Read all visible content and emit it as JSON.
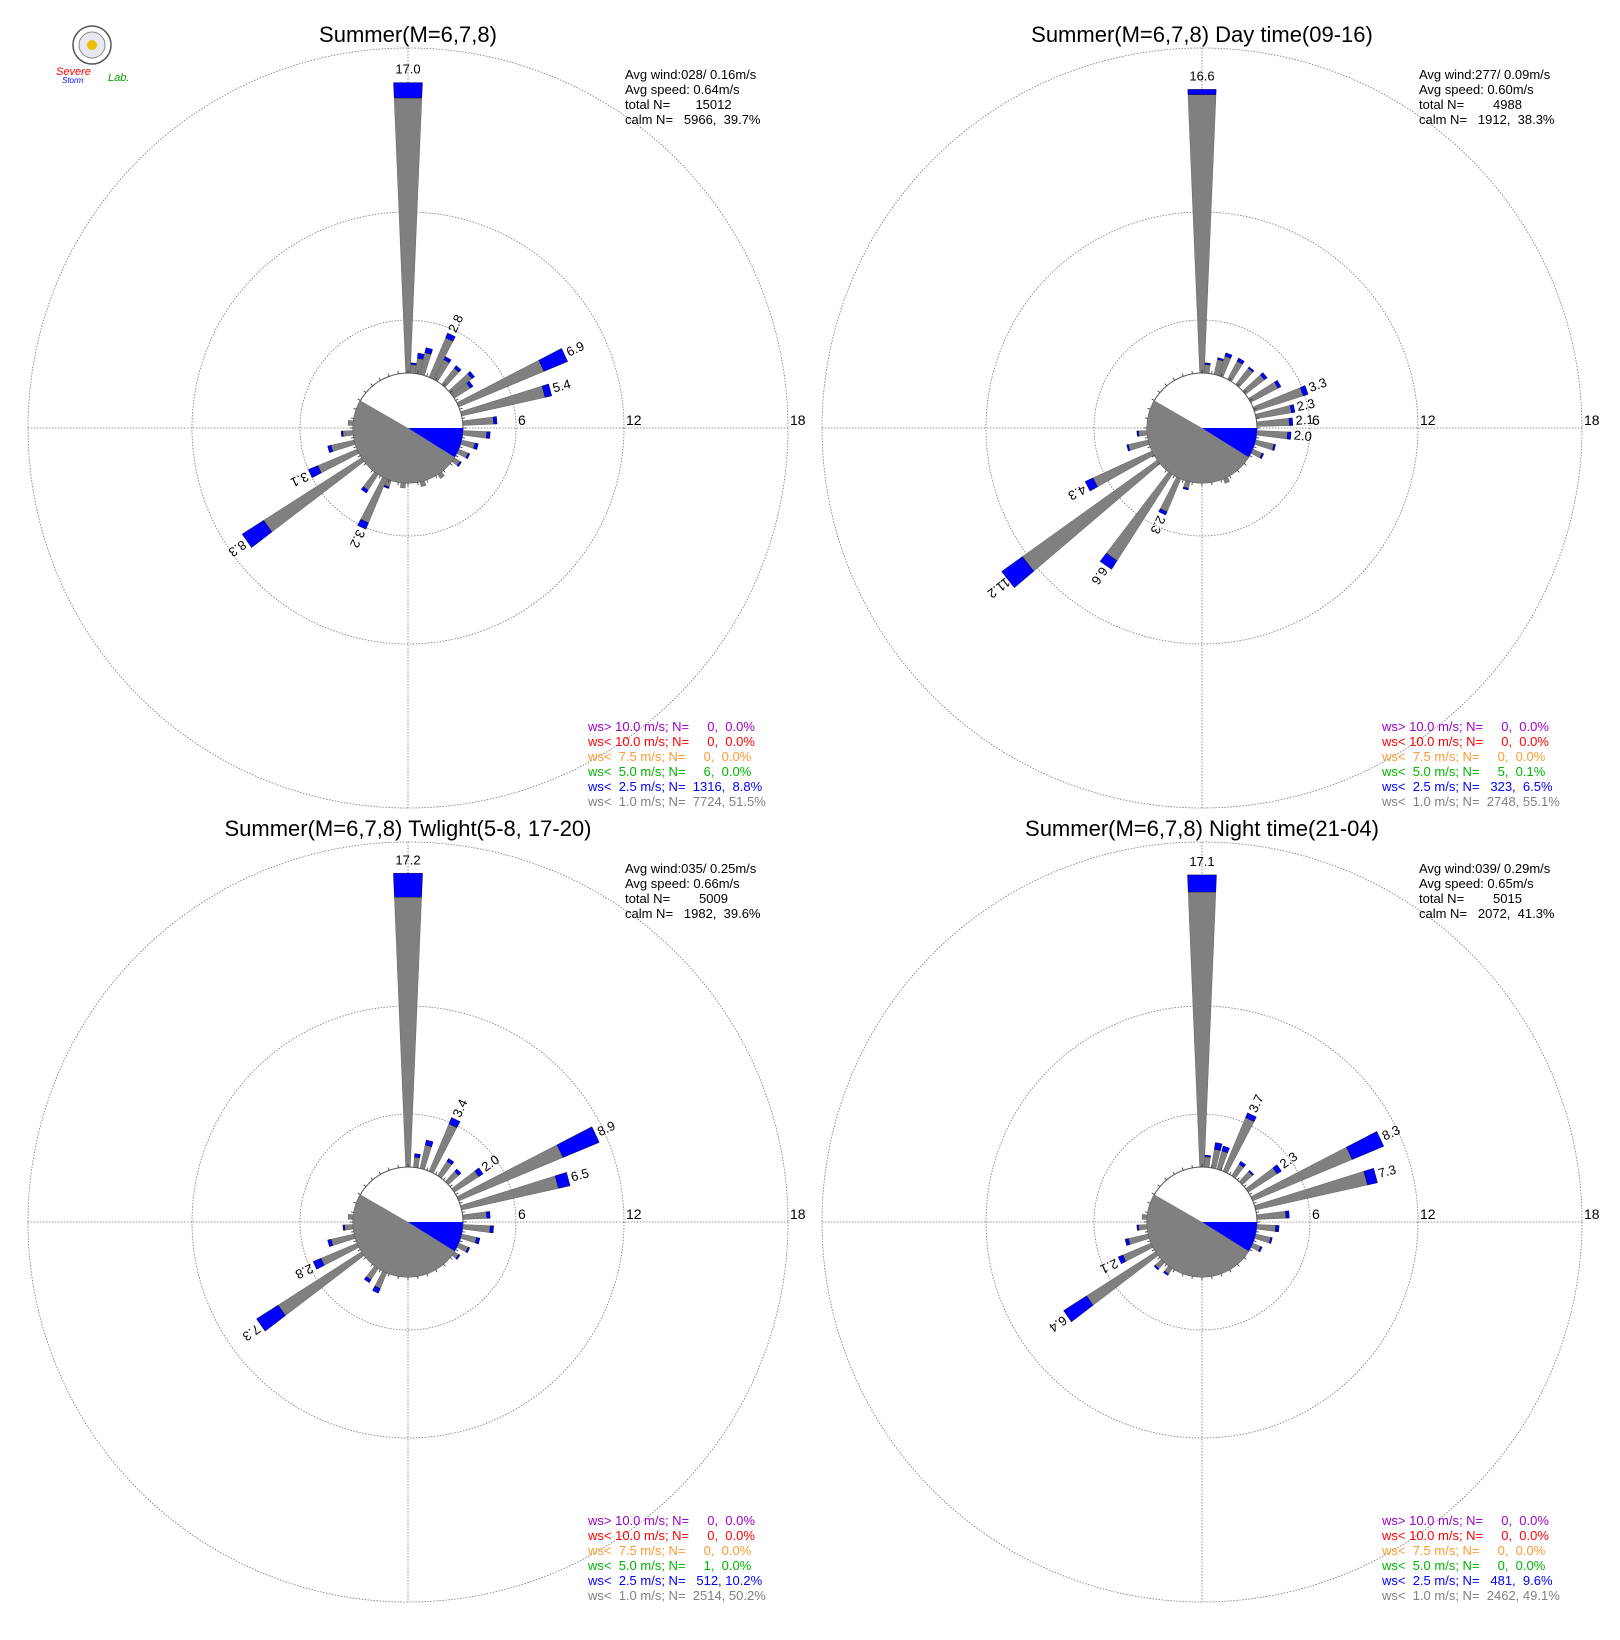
{
  "logo": {
    "line1": "Severe",
    "line2": "Storm",
    "line3": "Lab."
  },
  "legend_colors": {
    "gt10": "#a000c8",
    "lt10": "#ff0000",
    "lt75": "#ff9933",
    "lt5": "#00b400",
    "lt25": "#0000ff",
    "lt1": "#808080"
  },
  "chart_data": [
    {
      "type": "wind-rose",
      "title": "Summer(M=6,7,8)",
      "ring_labels": [
        "6",
        "12",
        "18"
      ],
      "rmax": 18,
      "stats": [
        "Avg wind:028/ 0.16m/s",
        "Avg speed: 0.64m/s",
        "total N=       15012",
        "calm N=   5966,  39.7%"
      ],
      "legend": [
        {
          "key": "gt10",
          "text": "ws> 10.0 m/s; N=     0,  0.0%"
        },
        {
          "key": "lt10",
          "text": "ws< 10.0 m/s; N=     0,  0.0%"
        },
        {
          "key": "lt75",
          "text": "ws<  7.5 m/s; N=     0,  0.0%"
        },
        {
          "key": "lt5",
          "text": "ws<  5.0 m/s; N=     6,  0.0%"
        },
        {
          "key": "lt25",
          "text": "ws<  2.5 m/s; N=  1316,  8.8%"
        },
        {
          "key": "lt1",
          "text": "ws<  1.0 m/s; N=  7724, 51.5%"
        }
      ],
      "sectors": [
        {
          "dir": 0,
          "total": 17.0,
          "blue": 0.9,
          "label": "17.0"
        },
        {
          "dir": 5,
          "total": 0.6,
          "blue": 0.1
        },
        {
          "dir": 10,
          "total": 1.2,
          "blue": 0.3
        },
        {
          "dir": 15,
          "total": 1.6,
          "blue": 0.3
        },
        {
          "dir": 25,
          "total": 2.8,
          "blue": 0.3,
          "label": "2.8"
        },
        {
          "dir": 30,
          "total": 1.5,
          "blue": 0.2
        },
        {
          "dir": 40,
          "total": 1.4,
          "blue": 0.2
        },
        {
          "dir": 50,
          "total": 1.7,
          "blue": 0.2
        },
        {
          "dir": 55,
          "total": 1.3,
          "blue": 0.2
        },
        {
          "dir": 65,
          "total": 6.9,
          "blue": 1.5,
          "label": "6.9"
        },
        {
          "dir": 75,
          "total": 5.4,
          "blue": 0.4,
          "label": "5.4"
        },
        {
          "dir": 85,
          "total": 2.0,
          "blue": 0.2
        },
        {
          "dir": 95,
          "total": 1.6,
          "blue": 0.2
        },
        {
          "dir": 105,
          "total": 1.0,
          "blue": 0.2
        },
        {
          "dir": 115,
          "total": 0.7,
          "blue": 0.1
        },
        {
          "dir": 125,
          "total": 0.5,
          "blue": 0.1
        },
        {
          "dir": 145,
          "total": 0.3,
          "blue": 0.0
        },
        {
          "dir": 165,
          "total": 0.3,
          "blue": 0.0
        },
        {
          "dir": 185,
          "total": 0.3,
          "blue": 0.0
        },
        {
          "dir": 200,
          "total": 0.5,
          "blue": 0.1
        },
        {
          "dir": 205,
          "total": 3.2,
          "blue": 0.4,
          "label": "3.2"
        },
        {
          "dir": 215,
          "total": 1.3,
          "blue": 0.2
        },
        {
          "dir": 235,
          "total": 8.3,
          "blue": 1.5,
          "label": "8.3"
        },
        {
          "dir": 245,
          "total": 3.1,
          "blue": 0.6,
          "label": "3.1"
        },
        {
          "dir": 255,
          "total": 1.6,
          "blue": 0.2
        },
        {
          "dir": 265,
          "total": 0.7,
          "blue": 0.1
        },
        {
          "dir": 275,
          "total": 0.3,
          "blue": 0.0
        }
      ]
    },
    {
      "type": "wind-rose",
      "title": "Summer(M=6,7,8) Day time(09-16)",
      "ring_labels": [
        "6",
        "12",
        "18"
      ],
      "rmax": 18,
      "stats": [
        "Avg wind:277/ 0.09m/s",
        "Avg speed: 0.60m/s",
        "total N=        4988",
        "calm N=   1912,  38.3%"
      ],
      "legend": [
        {
          "key": "gt10",
          "text": "ws> 10.0 m/s; N=     0,  0.0%"
        },
        {
          "key": "lt10",
          "text": "ws< 10.0 m/s; N=     0,  0.0%"
        },
        {
          "key": "lt75",
          "text": "ws<  7.5 m/s; N=     0,  0.0%"
        },
        {
          "key": "lt5",
          "text": "ws<  5.0 m/s; N=     5,  0.1%"
        },
        {
          "key": "lt25",
          "text": "ws<  2.5 m/s; N=   323,  6.5%"
        },
        {
          "key": "lt1",
          "text": "ws<  1.0 m/s; N=  2748, 55.1%"
        }
      ],
      "sectors": [
        {
          "dir": 0,
          "total": 16.6,
          "blue": 0.3,
          "label": "16.6"
        },
        {
          "dir": 5,
          "total": 0.6,
          "blue": 0.1
        },
        {
          "dir": 15,
          "total": 1.0,
          "blue": 0.1
        },
        {
          "dir": 20,
          "total": 1.4,
          "blue": 0.2
        },
        {
          "dir": 30,
          "total": 1.4,
          "blue": 0.2
        },
        {
          "dir": 40,
          "total": 1.3,
          "blue": 0.1
        },
        {
          "dir": 50,
          "total": 1.6,
          "blue": 0.2
        },
        {
          "dir": 60,
          "total": 2.0,
          "blue": 0.2
        },
        {
          "dir": 70,
          "total": 3.3,
          "blue": 0.3,
          "label": "3.3"
        },
        {
          "dir": 78,
          "total": 2.3,
          "blue": 0.2,
          "label": "2.3"
        },
        {
          "dir": 86,
          "total": 2.1,
          "blue": 0.2,
          "label": "2.1"
        },
        {
          "dir": 95,
          "total": 2.0,
          "blue": 0.2,
          "label": "2.0"
        },
        {
          "dir": 105,
          "total": 1.2,
          "blue": 0.1
        },
        {
          "dir": 115,
          "total": 0.7,
          "blue": 0.1
        },
        {
          "dir": 155,
          "total": 0.3,
          "blue": 0.0
        },
        {
          "dir": 195,
          "total": 0.5,
          "blue": 0.1
        },
        {
          "dir": 205,
          "total": 2.3,
          "blue": 0.2,
          "label": "2.3"
        },
        {
          "dir": 215,
          "total": 6.6,
          "blue": 0.6,
          "label": "6.6"
        },
        {
          "dir": 232,
          "total": 11.2,
          "blue": 1.5,
          "label": "11.2"
        },
        {
          "dir": 243,
          "total": 4.3,
          "blue": 0.5,
          "label": "4.3"
        },
        {
          "dir": 255,
          "total": 1.3,
          "blue": 0.1
        },
        {
          "dir": 265,
          "total": 0.6,
          "blue": 0.1
        }
      ]
    },
    {
      "type": "wind-rose",
      "title": "Summer(M=6,7,8) Twlight(5-8, 17-20)",
      "ring_labels": [
        "6",
        "12",
        "18"
      ],
      "rmax": 18,
      "stats": [
        "Avg wind:035/ 0.25m/s",
        "Avg speed: 0.66m/s",
        "total N=        5009",
        "calm N=   1982,  39.6%"
      ],
      "legend": [
        {
          "key": "gt10",
          "text": "ws> 10.0 m/s; N=     0,  0.0%"
        },
        {
          "key": "lt10",
          "text": "ws< 10.0 m/s; N=     0,  0.0%"
        },
        {
          "key": "lt75",
          "text": "ws<  7.5 m/s; N=     0,  0.0%"
        },
        {
          "key": "lt5",
          "text": "ws<  5.0 m/s; N=     1,  0.0%"
        },
        {
          "key": "lt25",
          "text": "ws<  2.5 m/s; N=   512, 10.2%"
        },
        {
          "key": "lt1",
          "text": "ws<  1.0 m/s; N=  2514, 50.2%"
        }
      ],
      "sectors": [
        {
          "dir": 0,
          "total": 17.2,
          "blue": 1.4,
          "label": "17.2"
        },
        {
          "dir": 8,
          "total": 0.8,
          "blue": 0.2
        },
        {
          "dir": 15,
          "total": 1.7,
          "blue": 0.3
        },
        {
          "dir": 25,
          "total": 3.4,
          "blue": 0.4,
          "label": "3.4"
        },
        {
          "dir": 35,
          "total": 1.2,
          "blue": 0.2
        },
        {
          "dir": 45,
          "total": 1.0,
          "blue": 0.2
        },
        {
          "dir": 55,
          "total": 2.0,
          "blue": 0.3,
          "label": "2.0"
        },
        {
          "dir": 65,
          "total": 8.9,
          "blue": 2.3,
          "label": "8.9"
        },
        {
          "dir": 75,
          "total": 6.5,
          "blue": 0.7,
          "label": "6.5"
        },
        {
          "dir": 85,
          "total": 1.6,
          "blue": 0.2
        },
        {
          "dir": 95,
          "total": 1.8,
          "blue": 0.2
        },
        {
          "dir": 105,
          "total": 1.1,
          "blue": 0.2
        },
        {
          "dir": 115,
          "total": 0.7,
          "blue": 0.1
        },
        {
          "dir": 125,
          "total": 0.4,
          "blue": 0.1
        },
        {
          "dir": 205,
          "total": 1.3,
          "blue": 0.3
        },
        {
          "dir": 215,
          "total": 1.0,
          "blue": 0.2
        },
        {
          "dir": 235,
          "total": 7.3,
          "blue": 1.5,
          "label": "7.3"
        },
        {
          "dir": 245,
          "total": 2.8,
          "blue": 0.5,
          "label": "2.8"
        },
        {
          "dir": 255,
          "total": 1.6,
          "blue": 0.2
        },
        {
          "dir": 265,
          "total": 0.6,
          "blue": 0.1
        },
        {
          "dir": 275,
          "total": 0.3,
          "blue": 0.0
        }
      ]
    },
    {
      "type": "wind-rose",
      "title": "Summer(M=6,7,8) Night time(21-04)",
      "ring_labels": [
        "6",
        "12",
        "18"
      ],
      "rmax": 18,
      "stats": [
        "Avg wind:039/ 0.29m/s",
        "Avg speed: 0.65m/s",
        "total N=        5015",
        "calm N=   2072,  41.3%"
      ],
      "legend": [
        {
          "key": "gt10",
          "text": "ws> 10.0 m/s; N=     0,  0.0%"
        },
        {
          "key": "lt10",
          "text": "ws< 10.0 m/s; N=     0,  0.0%"
        },
        {
          "key": "lt75",
          "text": "ws<  7.5 m/s; N=     0,  0.0%"
        },
        {
          "key": "lt5",
          "text": "ws<  5.0 m/s; N=     0,  0.0%"
        },
        {
          "key": "lt25",
          "text": "ws<  2.5 m/s; N=   481,  9.6%"
        },
        {
          "key": "lt1",
          "text": "ws<  1.0 m/s; N=  2462, 49.1%"
        }
      ],
      "sectors": [
        {
          "dir": 0,
          "total": 17.1,
          "blue": 1.0,
          "label": "17.1"
        },
        {
          "dir": 5,
          "total": 0.7,
          "blue": 0.1
        },
        {
          "dir": 12,
          "total": 1.5,
          "blue": 0.4
        },
        {
          "dir": 18,
          "total": 1.4,
          "blue": 0.3
        },
        {
          "dir": 25,
          "total": 3.7,
          "blue": 0.3,
          "label": "3.7"
        },
        {
          "dir": 35,
          "total": 1.0,
          "blue": 0.2
        },
        {
          "dir": 45,
          "total": 0.9,
          "blue": 0.1
        },
        {
          "dir": 55,
          "total": 2.3,
          "blue": 0.3,
          "label": "2.3"
        },
        {
          "dir": 65,
          "total": 8.3,
          "blue": 2.0,
          "label": "8.3"
        },
        {
          "dir": 75,
          "total": 7.3,
          "blue": 0.6,
          "label": "7.3"
        },
        {
          "dir": 85,
          "total": 1.9,
          "blue": 0.2
        },
        {
          "dir": 95,
          "total": 1.3,
          "blue": 0.2
        },
        {
          "dir": 105,
          "total": 1.0,
          "blue": 0.1
        },
        {
          "dir": 115,
          "total": 0.6,
          "blue": 0.1
        },
        {
          "dir": 215,
          "total": 0.5,
          "blue": 0.1
        },
        {
          "dir": 225,
          "total": 0.6,
          "blue": 0.1
        },
        {
          "dir": 235,
          "total": 6.4,
          "blue": 1.6,
          "label": "6.4"
        },
        {
          "dir": 245,
          "total": 2.1,
          "blue": 0.3,
          "label": "2.1"
        },
        {
          "dir": 255,
          "total": 1.4,
          "blue": 0.2
        },
        {
          "dir": 265,
          "total": 0.6,
          "blue": 0.1
        },
        {
          "dir": 275,
          "total": 0.3,
          "blue": 0.0
        }
      ]
    }
  ]
}
